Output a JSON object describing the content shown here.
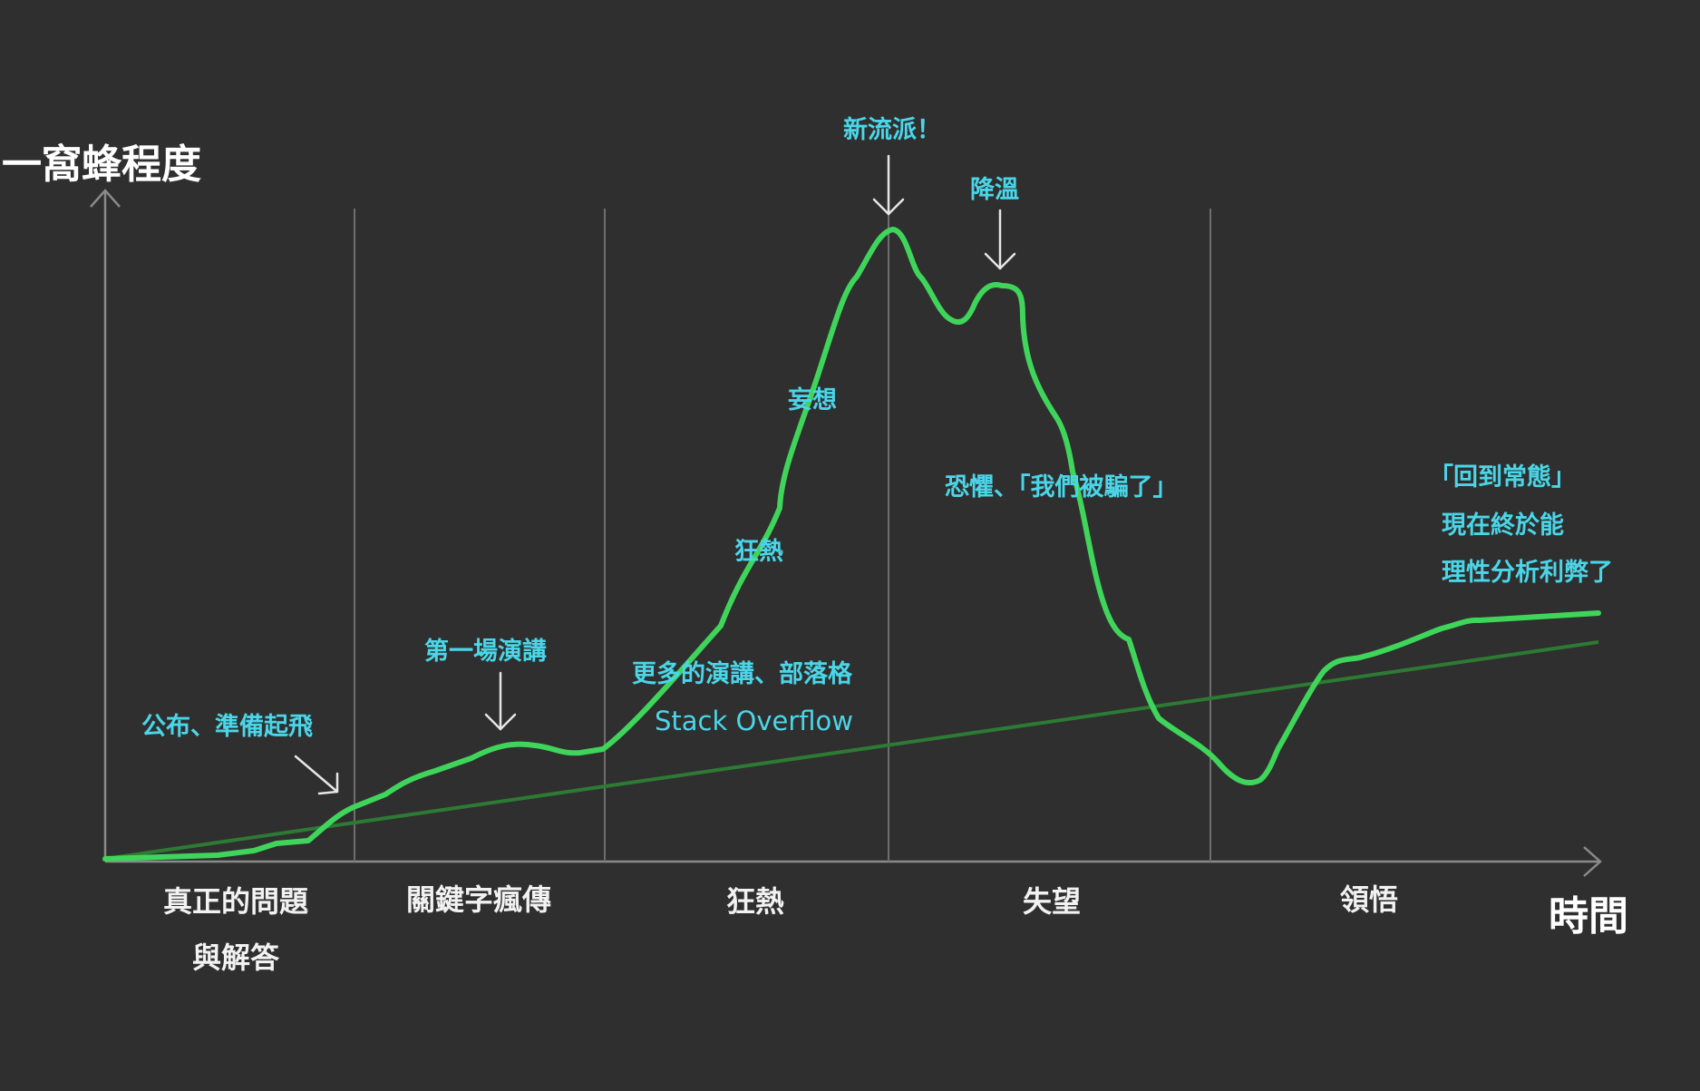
{
  "axes": {
    "y_label": "一窩蜂程度",
    "x_label": "時間"
  },
  "phases": [
    {
      "lines": [
        "真正的問題",
        "與解答"
      ]
    },
    {
      "lines": [
        "關鍵字瘋傳"
      ]
    },
    {
      "lines": [
        "狂熱"
      ]
    },
    {
      "lines": [
        "失望"
      ]
    },
    {
      "lines": [
        "領悟"
      ]
    }
  ],
  "annotations": {
    "launch": "公布、準備起飛",
    "first_talk": "第一場演講",
    "more_talks": "更多的演講、部落格",
    "stack_overflow": "Stack Overflow",
    "frenzy": "狂熱",
    "delusion": "妄想",
    "new_school": "新流派！",
    "cooling": "降溫",
    "fear": "恐懼、「我們被騙了」",
    "normal_1": "「回到常態」",
    "normal_2": "現在終於能",
    "normal_3": "理性分析利弊了"
  },
  "colors": {
    "background": "#2f2f2f",
    "hype_curve": "#3fd55a",
    "trend_line": "#2d7a34",
    "annotation": "#4ad6e8",
    "phase_label": "#f2f2f2",
    "axis": "#8a8a8a"
  }
}
